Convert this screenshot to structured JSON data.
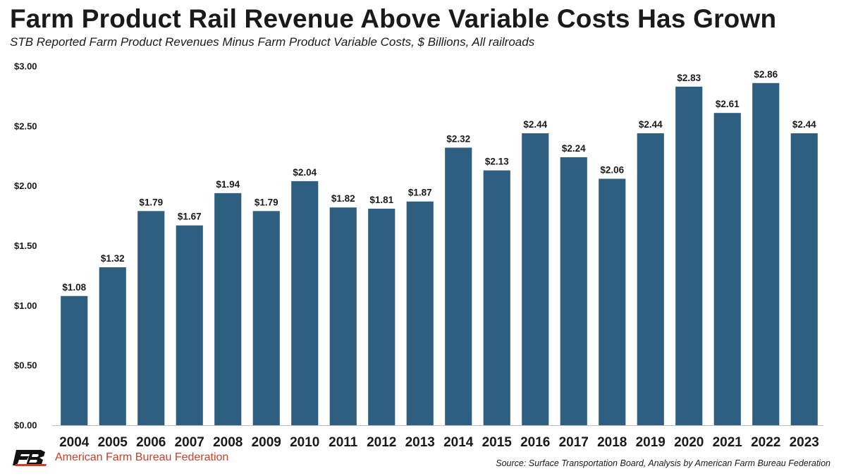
{
  "chart_data": {
    "type": "bar",
    "title": "Farm Product Rail Revenue Above Variable Costs Has Grown",
    "subtitle": "STB Reported Farm Product Revenues Minus Farm Product Variable Costs, $ Billions, All railroads",
    "categories": [
      "2004",
      "2005",
      "2006",
      "2007",
      "2008",
      "2009",
      "2010",
      "2011",
      "2012",
      "2013",
      "2014",
      "2015",
      "2016",
      "2017",
      "2018",
      "2019",
      "2020",
      "2021",
      "2022",
      "2023"
    ],
    "values": [
      1.08,
      1.32,
      1.79,
      1.67,
      1.94,
      1.79,
      2.04,
      1.82,
      1.81,
      1.87,
      2.32,
      2.13,
      2.44,
      2.24,
      2.06,
      2.44,
      2.83,
      2.61,
      2.86,
      2.44
    ],
    "value_labels": [
      "$1.08",
      "$1.32",
      "$1.79",
      "$1.67",
      "$1.94",
      "$1.79",
      "$2.04",
      "$1.82",
      "$1.81",
      "$1.87",
      "$2.32",
      "$2.13",
      "$2.44",
      "$2.24",
      "$2.06",
      "$2.44",
      "$2.83",
      "$2.61",
      "$2.86",
      "$2.44"
    ],
    "yticks": [
      0,
      0.5,
      1.0,
      1.5,
      2.0,
      2.5,
      3.0
    ],
    "ytick_labels": [
      "$0.00",
      "$0.50",
      "$1.00",
      "$1.50",
      "$2.00",
      "$2.50",
      "$3.00"
    ],
    "ylim": [
      0,
      3.0
    ],
    "xlabel": "",
    "ylabel": "",
    "grid": false,
    "bar_color": "#2e5f80"
  },
  "footer": {
    "org_name": "American Farm Bureau Federation",
    "source": "Source: Surface Transportation Board, Analysis by American Farm Bureau Federation"
  }
}
